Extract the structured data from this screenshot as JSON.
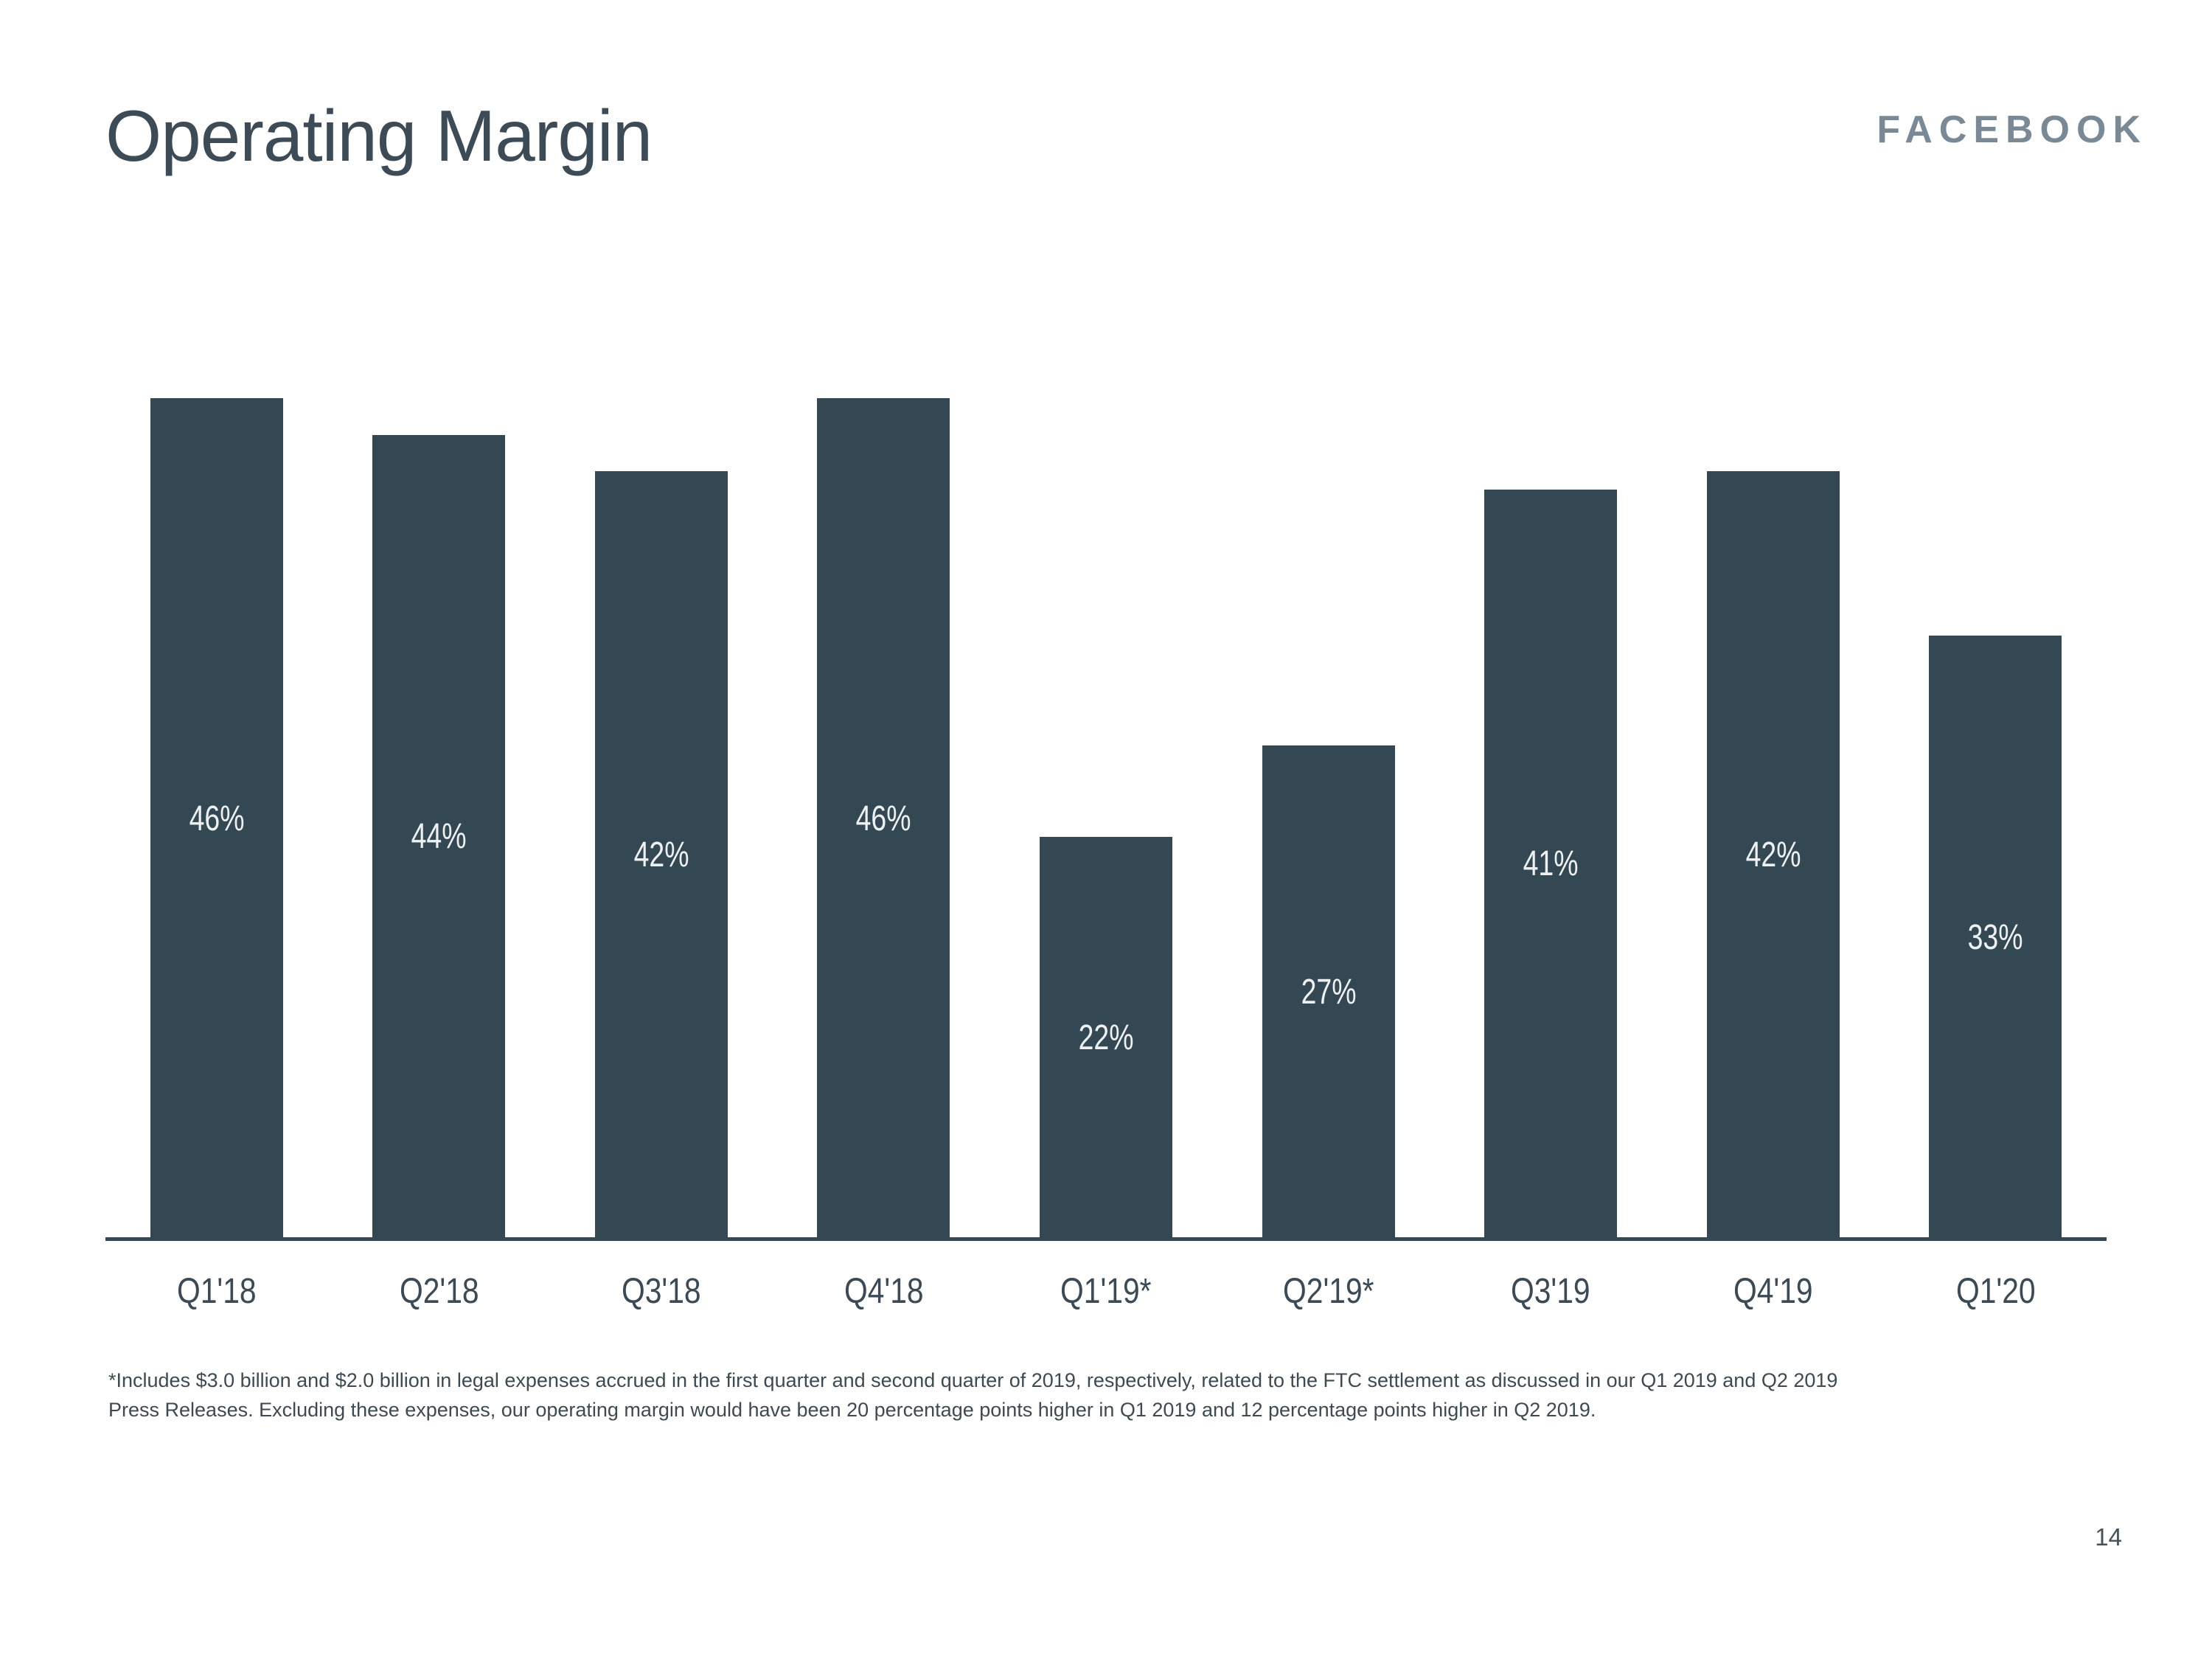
{
  "slide": {
    "title": "Operating Margin",
    "brand": "FACEBOOK",
    "page_number": "14",
    "footnote_lines": [
      "*Includes $3.0 billion and $2.0 billion in legal expenses accrued in the first quarter and second quarter of 2019, respectively, related to the FTC settlement as discussed in our Q1 2019 and Q2 2019",
      "Press Releases. Excluding these expenses, our operating margin would have been 20 percentage points higher in Q1 2019 and 12 percentage points higher in Q2 2019."
    ]
  },
  "chart_data": {
    "type": "bar",
    "title": "Operating Margin",
    "categories": [
      "Q1'18",
      "Q2'18",
      "Q3'18",
      "Q4'18",
      "Q1'19*",
      "Q2'19*",
      "Q3'19",
      "Q4'19",
      "Q1'20"
    ],
    "values": [
      46,
      44,
      42,
      46,
      22,
      27,
      41,
      42,
      33
    ],
    "data_labels": [
      "46%",
      "44%",
      "42%",
      "46%",
      "22%",
      "27%",
      "41%",
      "42%",
      "33%"
    ],
    "data_label_position": "center",
    "xlabel": "",
    "ylabel": "",
    "ylim": [
      0,
      46
    ],
    "grid": false,
    "legend": false,
    "y_axis_visible": false,
    "bar_color": "#344854",
    "data_label_color": "#eef1f2",
    "axis_line_color": "#344854"
  }
}
